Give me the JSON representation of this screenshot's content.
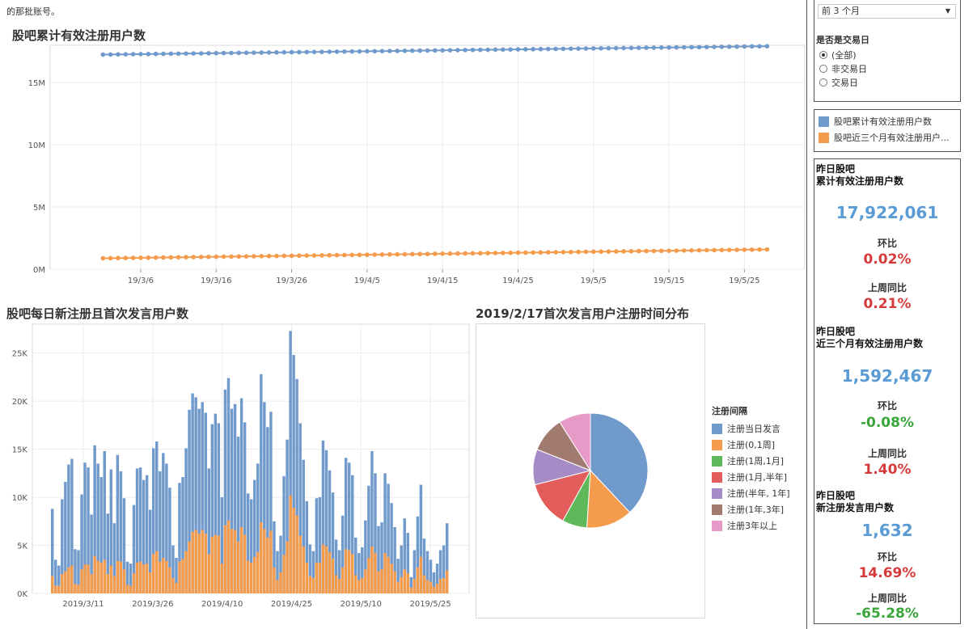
{
  "top_note": "的那批账号。",
  "chart1": {
    "title": "股吧累计有效注册用户数",
    "y_ticks": [
      "15M",
      "10M",
      "5M",
      "0M"
    ],
    "x_ticks": [
      "19/3/6",
      "19/3/16",
      "19/3/26",
      "19/4/5",
      "19/4/15",
      "19/4/25",
      "19/5/5",
      "19/5/15",
      "19/5/25"
    ]
  },
  "chart2": {
    "title": "股吧每日新注册且首次发言用户数",
    "y_ticks": [
      "25K",
      "20K",
      "15K",
      "10K",
      "5K",
      "0K"
    ],
    "x_ticks": [
      "2019/3/11",
      "2019/3/26",
      "2019/4/10",
      "2019/4/25",
      "2019/5/10",
      "2019/5/25"
    ]
  },
  "chart3": {
    "title": "2019/2/17首次发言用户注册时间分布",
    "legend_title": "注册间隔"
  },
  "filter": {
    "period_value": "前 3 个月",
    "trading_label": "是否是交易日",
    "options": [
      {
        "label": "(全部)",
        "selected": true
      },
      {
        "label": "非交易日",
        "selected": false
      },
      {
        "label": "交易日",
        "selected": false
      }
    ]
  },
  "series_legend": [
    {
      "label": "股吧累计有效注册用户数",
      "color": "#6f9acb"
    },
    {
      "label": "股吧近三个月有效注册用户...",
      "color": "#f59b4c"
    }
  ],
  "kpis": [
    {
      "head1": "昨日股吧",
      "head2": "累计有效注册用户数",
      "value": "17,922,061",
      "hb_label": "环比",
      "hb_value": "0.02%",
      "hb_color": "#d63b3b",
      "tb_label": "上周同比",
      "tb_value": "0.21%",
      "tb_color": "#d63b3b"
    },
    {
      "head1": "昨日股吧",
      "head2": "近三个月有效注册用户数",
      "value": "1,592,467",
      "hb_label": "环比",
      "hb_value": "-0.08%",
      "hb_color": "#3aa53a",
      "tb_label": "上周同比",
      "tb_value": "1.40%",
      "tb_color": "#d63b3b"
    },
    {
      "head1": "昨日股吧",
      "head2": "新注册发言用户数",
      "value": "1,632",
      "hb_label": "环比",
      "hb_value": "14.69%",
      "hb_color": "#d63b3b",
      "tb_label": "上周同比",
      "tb_value": "-65.28%",
      "tb_color": "#3aa53a"
    }
  ],
  "chart_data": [
    {
      "type": "line",
      "title": "股吧累计有效注册用户数",
      "ylim": [
        0,
        18000000
      ],
      "x_range": [
        "2019-03-01",
        "2019-05-28"
      ],
      "series": [
        {
          "name": "股吧累计有效注册用户数",
          "color": "#6f9acb",
          "start": 17250000,
          "end": 17922061
        },
        {
          "name": "股吧近三个月有效注册用户数",
          "color": "#f59b4c",
          "start": 880000,
          "end": 1592467
        }
      ],
      "grid": true
    },
    {
      "type": "bar",
      "title": "股吧每日新注册且首次发言用户数",
      "ylim": [
        0,
        28000
      ],
      "stacked": true,
      "x_range": [
        "2019-03-04",
        "2019-05-29"
      ],
      "series": [
        {
          "name": "total",
          "color": "#6f9acb",
          "values": [
            8800,
            3500,
            2900,
            9800,
            11600,
            13400,
            14000,
            4600,
            4500,
            10300,
            13600,
            13100,
            8200,
            15400,
            13500,
            12100,
            14800,
            8300,
            12900,
            7300,
            14400,
            12700,
            9900,
            3300,
            3100,
            9200,
            13000,
            13100,
            11800,
            12300,
            8700,
            15100,
            15800,
            12700,
            14600,
            13500,
            11000,
            5000,
            3700,
            11500,
            12100,
            15100,
            19100,
            20800,
            20400,
            19200,
            19900,
            18800,
            13000,
            17600,
            18700,
            17700,
            10000,
            21200,
            22400,
            19200,
            19700,
            16300,
            20300,
            17800,
            10400,
            9800,
            11800,
            13500,
            22800,
            19900,
            17300,
            18900,
            7500,
            4400,
            6000,
            12200,
            16000,
            27300,
            24800,
            22300,
            17700,
            13900,
            9600,
            5100,
            4400,
            9900,
            10000,
            15900,
            14900,
            12800,
            10500,
            5600,
            4500,
            8100,
            14100,
            13600,
            12300,
            5800,
            4200,
            4800,
            7600,
            11200,
            14800,
            12500,
            7000,
            7400,
            12500,
            11400,
            9400,
            6900,
            3600,
            5000,
            7800,
            6300,
            1700,
            4500,
            8000,
            11300,
            5700,
            4400,
            3500,
            2200,
            3100,
            4500,
            5000,
            7300
          ],
          "values_note": "daily total height of stacked bar (blue + orange)"
        },
        {
          "name": "orange",
          "color": "#f59b4c",
          "values": [
            1800,
            800,
            800,
            2000,
            2300,
            2700,
            2900,
            1000,
            900,
            2500,
            3000,
            3000,
            2000,
            3900,
            3400,
            3200,
            3500,
            2000,
            2900,
            1800,
            3400,
            3300,
            2500,
            900,
            800,
            2100,
            3200,
            3300,
            3000,
            3100,
            2200,
            4100,
            4400,
            3300,
            3700,
            3400,
            2700,
            1600,
            1100,
            3300,
            3600,
            4400,
            5400,
            6400,
            6600,
            6200,
            6600,
            6200,
            4100,
            5900,
            6100,
            6000,
            3100,
            7100,
            7600,
            6700,
            6600,
            5400,
            6900,
            6100,
            3400,
            3200,
            3800,
            4300,
            7400,
            6700,
            5800,
            6500,
            2700,
            1400,
            2200,
            4000,
            5400,
            10200,
            8900,
            8100,
            6000,
            4900,
            3200,
            1800,
            1600,
            3200,
            3200,
            5100,
            4900,
            4300,
            3600,
            1900,
            1500,
            2700,
            4600,
            4500,
            4100,
            1900,
            1400,
            1600,
            2500,
            3700,
            4900,
            4200,
            2300,
            2500,
            4200,
            3800,
            3100,
            2300,
            1200,
            1700,
            2500,
            2100,
            600,
            1500,
            2700,
            3800,
            1900,
            1400,
            1200,
            700,
            1000,
            1500,
            1600,
            2400
          ],
          "values_note": "orange lower segment"
        }
      ]
    },
    {
      "type": "pie",
      "title": "2019/2/17首次发言用户注册时间分布",
      "slices": [
        {
          "label": "注册当日发言",
          "value": 38,
          "color": "#6f9acb"
        },
        {
          "label": "注册(0,1周]",
          "value": 13,
          "color": "#f59b4c"
        },
        {
          "label": "注册(1周,1月]",
          "value": 7,
          "color": "#5fb95a"
        },
        {
          "label": "注册(1月,半年]",
          "value": 13,
          "color": "#e45d5d"
        },
        {
          "label": "注册(半年, 1年]",
          "value": 10,
          "color": "#a68bc6"
        },
        {
          "label": "注册(1年,3年]",
          "value": 10,
          "color": "#a17b6f"
        },
        {
          "label": "注册3年以上",
          "value": 9,
          "color": "#e79ac8"
        }
      ]
    }
  ]
}
